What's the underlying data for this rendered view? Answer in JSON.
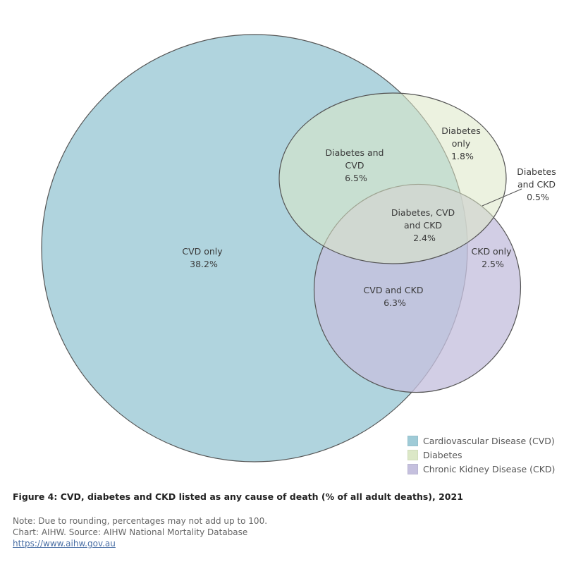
{
  "colors": {
    "cvd": "#9fcbd7",
    "diabetes": "#dce8c7",
    "ckd": "#c5c0de",
    "stroke": "#555555"
  },
  "regions": {
    "cvd_only": {
      "line1": "CVD only",
      "line2": "38.2%"
    },
    "diab_cvd": {
      "line1": "Diabetes and",
      "line2": "CVD",
      "line3": "6.5%"
    },
    "diab_only": {
      "line1": "Diabetes",
      "line2": "only",
      "line3": "1.8%"
    },
    "diab_ckd": {
      "line1": "Diabetes",
      "line2": "and CKD",
      "line3": "0.5%"
    },
    "all_three": {
      "line1": "Diabetes, CVD",
      "line2": "and CKD",
      "line3": "2.4%"
    },
    "ckd_only": {
      "line1": "CKD only",
      "line2": "2.5%"
    },
    "cvd_ckd": {
      "line1": "CVD and CKD",
      "line2": "6.3%"
    }
  },
  "legend": [
    {
      "label": "Cardiovascular Disease (CVD)",
      "color": "#9fcbd7"
    },
    {
      "label": "Diabetes",
      "color": "#dce8c7"
    },
    {
      "label": "Chronic Kidney Disease (CKD)",
      "color": "#c5c0de"
    }
  ],
  "figure_title": "Figure 4: CVD, diabetes and CKD listed as any cause of death (% of all adult deaths), 2021",
  "footer": {
    "note": "Note: Due to rounding, percentages may not add up to 100.",
    "source": "Chart: AIHW. Source: AIHW National Mortality Database",
    "link": "https://www.aihw.gov.au"
  }
}
